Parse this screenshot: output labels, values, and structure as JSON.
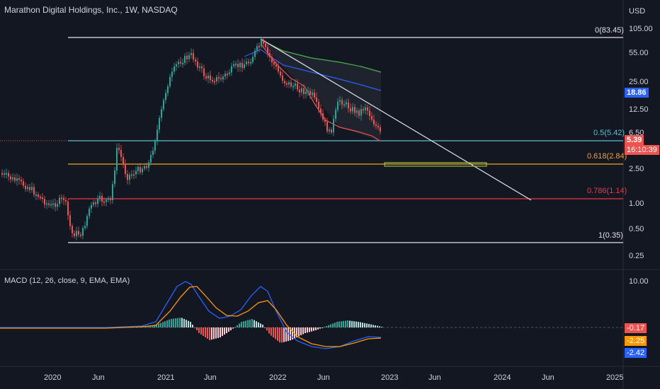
{
  "header": {
    "title": "Marathon Digital Holdings, Inc., 1W, NASDAQ",
    "currency": "USD"
  },
  "price_axis": {
    "ticks": [
      "105.00",
      "55.00",
      "25.00",
      "12.50",
      "6.50",
      "2.50",
      "1.00",
      "0.50",
      "0.25"
    ]
  },
  "fib_levels": {
    "level_0": "0(83.45)",
    "level_05": "0.5(5.42)",
    "level_0618": "0.618(2.84)",
    "level_0786": "0.786(1.14)",
    "level_1": "1(0.35)"
  },
  "tags": {
    "ma_value": "18.86",
    "last_price": "5.39",
    "countdown": "16:10:39"
  },
  "macd": {
    "title": "MACD (12, 26, close, 9, EMA, EMA)",
    "axis_top": "10.00",
    "hist_value": "-0.17",
    "signal_value": "-2.25",
    "macd_value": "-2.42"
  },
  "time_axis": {
    "labels": [
      "2020",
      "Jun",
      "2021",
      "Jun",
      "2022",
      "Jun",
      "2023",
      "Jun",
      "2024",
      "Jun",
      "2025"
    ]
  },
  "colors": {
    "background": "#131722",
    "up": "#26a69a",
    "down": "#ef5350",
    "fib_05": "#5fbdce",
    "fib_0618": "#f7a21b",
    "fib_0786": "#f23645",
    "ma_blue": "#2962ff",
    "macd_orange": "#ff9800"
  }
}
